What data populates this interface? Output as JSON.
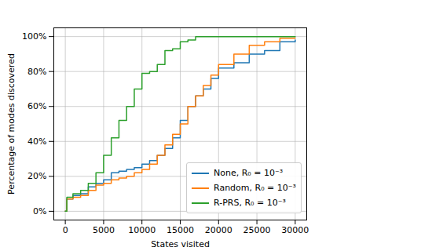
{
  "chart_data": {
    "type": "line",
    "x_label": "States visited",
    "y_label": "Percentage of modes discovered",
    "x": [
      0,
      200,
      1000,
      2000,
      3000,
      4000,
      5000,
      6000,
      7000,
      8000,
      9000,
      10000,
      11000,
      12000,
      13000,
      14000,
      15000,
      16000,
      17000,
      18000,
      19000,
      20000,
      22000,
      24000,
      26000,
      28000,
      30000
    ],
    "series": [
      {
        "name": "None, R₀ = 10⁻³",
        "color": "#1f77b4",
        "values": [
          0,
          7,
          9,
          10,
          14,
          16,
          18,
          22,
          23,
          24,
          25,
          27,
          29,
          32,
          36,
          42,
          52,
          60,
          66,
          70,
          76,
          82,
          85,
          90,
          92,
          97,
          98
        ]
      },
      {
        "name": "Random, R₀ = 10⁻³",
        "color": "#ff7f0e",
        "values": [
          0,
          7,
          8,
          9,
          12,
          15,
          16,
          18,
          19,
          20,
          22,
          24,
          27,
          32,
          38,
          44,
          50,
          60,
          66,
          72,
          78,
          84,
          90,
          95,
          97,
          99,
          99
        ]
      },
      {
        "name": "R-PRS, R₀ = 10⁻³",
        "color": "#2ca02c",
        "values": [
          0,
          8,
          10,
          12,
          16,
          22,
          32,
          42,
          52,
          60,
          70,
          79,
          80,
          84,
          92,
          93,
          97,
          98,
          100,
          100,
          100,
          100,
          100,
          100,
          100,
          100,
          100
        ]
      }
    ],
    "xlim": [
      -1500,
      31500
    ],
    "xticks": [
      0,
      5000,
      10000,
      15000,
      20000,
      25000,
      30000
    ],
    "ylim": [
      -5,
      105
    ],
    "yticks": [
      {
        "value": 0,
        "label": "0%"
      },
      {
        "value": 20,
        "label": "20%"
      },
      {
        "value": 40,
        "label": "40%"
      },
      {
        "value": 60,
        "label": "60%"
      },
      {
        "value": 80,
        "label": "80%"
      },
      {
        "value": 100,
        "label": "100%"
      }
    ],
    "grid": true,
    "legend": "lower right",
    "line_style": "step"
  }
}
